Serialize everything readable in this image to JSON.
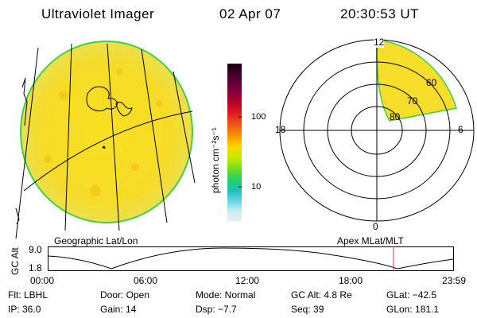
{
  "header": {
    "instrument": "Ultraviolet Imager",
    "date": "02 Apr 07",
    "time": "20:30:53 UT"
  },
  "geo_panel": {
    "caption": "Geographic Lat/Lon"
  },
  "colorbar": {
    "unit_label": "photon cm⁻²s⁻¹",
    "tick_high": "100",
    "tick_low": "10",
    "scale": "log",
    "colors": [
      "#1a0010",
      "#4a0030",
      "#7a0040",
      "#b0002a",
      "#e02020",
      "#f06010",
      "#f5a000",
      "#f8d800",
      "#c8e800",
      "#70dc20",
      "#20d070",
      "#20c0c0",
      "#70d8e8",
      "#c8eef2",
      "#ececec"
    ]
  },
  "polar_panel": {
    "caption": "Apex MLat/MLT",
    "mlt_labels": {
      "top": "12",
      "left": "18",
      "right": "6",
      "bottom": "0"
    },
    "lat_labels": [
      "60",
      "70",
      "80"
    ]
  },
  "altitude_plot": {
    "ylabel": "GC Alt",
    "ymax_label": "9.0",
    "ymin_label": "1.8",
    "xticks": [
      "00:00",
      "06:00",
      "12:00",
      "18:00",
      "23:59"
    ],
    "marker_color": "#e03030"
  },
  "footer": {
    "flt": "Flt: LBHL",
    "door": "Door: Open",
    "mode": "Mode: Normal",
    "gc_alt": "GC Alt: 4.8 Re",
    "glat": "GLat: −42.5",
    "ip": "IP: 36.0",
    "gain": "Gain: 14",
    "dsp": "Dsp:   −7.7",
    "seq": "Seq: 39",
    "glon": "GLon: 181.1"
  }
}
